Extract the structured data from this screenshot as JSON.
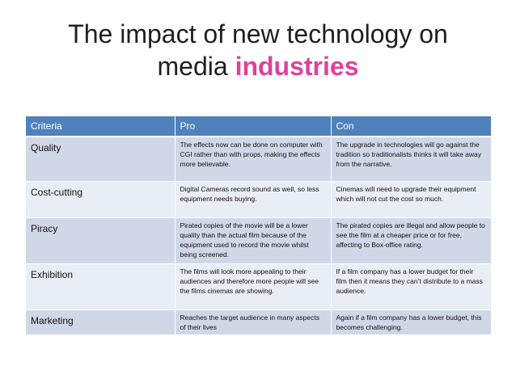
{
  "title": {
    "main": "The impact of new technology on",
    "line2": "media",
    "accent": "industries"
  },
  "colors": {
    "header": "#4f81bd",
    "row_odd": "#d0d8e8",
    "row_even": "#e9edf4",
    "accent": "#e0409a"
  },
  "table": {
    "headers": [
      "Criteria",
      "Pro",
      "Con"
    ],
    "rows": [
      {
        "criteria": "Quality",
        "pro": "The effects now can be done on computer with CGI rather than with props, making the effects more believable.",
        "con": "The upgrade in technologies will go against the tradition so traditionalists thinks it will take away from the narrative."
      },
      {
        "criteria": "Cost-cutting",
        "pro": "Digital Cameras record sound as well, so less equipment needs buying.",
        "con": "Cinemas will need to upgrade their equipment which will not cut the cost so much."
      },
      {
        "criteria": "Piracy",
        "pro": "Pirated copies of the movie will be a lower quality than the actual film because of the equipment used to record the movie whilst being screened.",
        "con": "The pirated copies are illegal and allow people to see the film at a cheaper price or for free, affecting to Box-office rating."
      },
      {
        "criteria": "Exhibition",
        "pro": "The films will look more appealing to their audiences and therefore more people will see the films cinemas are showing.",
        "con": "If a film company has a lower budget for their film then it means they can’t distribute to a mass audience."
      },
      {
        "criteria": "Marketing",
        "pro": "Reaches the target audience in many aspects of their lives",
        "con": "Again if a film company has a lower budget, this becomes challenging."
      }
    ]
  }
}
